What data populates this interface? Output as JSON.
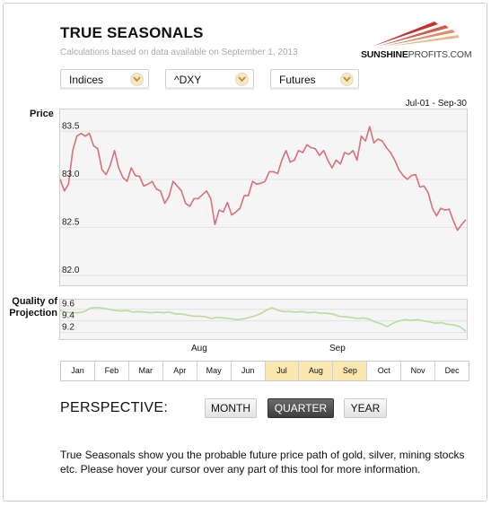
{
  "header": {
    "title": "TRUE SEASONALS",
    "subtitle": "Calculations based on data available on September 1, 2013",
    "logo_bold": "SUNSHINE",
    "logo_light": "PROFITS.COM"
  },
  "selectors": [
    {
      "value": "Indices"
    },
    {
      "value": "^DXY"
    },
    {
      "value": "Futures"
    }
  ],
  "range_label": "Jul-01 - Sep-30",
  "price_label": "Price",
  "quality_label": "Quality of Projection",
  "month_axis": [
    "Aug",
    "Sep"
  ],
  "months": [
    "Jan",
    "Feb",
    "Mar",
    "Apr",
    "May",
    "Jun",
    "Jul",
    "Aug",
    "Sep",
    "Oct",
    "Nov",
    "Dec"
  ],
  "highlighted_months": [
    "Jul",
    "Aug",
    "Sep"
  ],
  "perspective": {
    "label": "PERSPECTIVE:",
    "buttons": [
      "MONTH",
      "QUARTER",
      "YEAR"
    ],
    "active": "QUARTER"
  },
  "description": "True Seasonals show you the probable future price path of gold, silver, mining stocks etc. Please hover your cursor over any part of this tool for more information.",
  "colors": {
    "price_line": "#d9707b",
    "quality_line": "#b7dc9b",
    "highlight": "#fbe8b0",
    "accent": "#c9302c"
  },
  "chart_data": [
    {
      "type": "line",
      "title": "Price",
      "x_range": [
        "Jul-01",
        "Sep-30"
      ],
      "yticks": [
        82.0,
        82.5,
        83.0,
        83.5
      ],
      "ylim": [
        82.0,
        83.7
      ],
      "grid": true,
      "series": [
        {
          "values": [
            83.0,
            82.88,
            82.95,
            83.3,
            83.45,
            83.48,
            83.45,
            83.48,
            83.35,
            83.32,
            83.1,
            83.05,
            83.15,
            83.3,
            83.12,
            83.02,
            82.98,
            83.12,
            83.04,
            83.03,
            82.93,
            82.95,
            82.98,
            82.9,
            82.88,
            82.75,
            82.82,
            82.98,
            82.93,
            82.88,
            82.75,
            82.72,
            82.8,
            82.8,
            82.84,
            82.88,
            82.8,
            82.53,
            82.68,
            82.66,
            82.76,
            82.63,
            82.66,
            82.7,
            82.83,
            82.83,
            82.98,
            82.95,
            82.96,
            82.98,
            83.08,
            83.08,
            83.06,
            83.2,
            83.3,
            83.18,
            83.2,
            83.3,
            83.28,
            83.36,
            83.33,
            83.32,
            83.25,
            83.3,
            83.2,
            83.12,
            83.2,
            83.16,
            83.28,
            83.26,
            83.3,
            83.2,
            83.45,
            83.4,
            83.55,
            83.38,
            83.42,
            83.4,
            83.33,
            83.28,
            83.2,
            83.1,
            83.04,
            83.0,
            83.04,
            83.05,
            82.92,
            82.93,
            82.86,
            82.7,
            82.62,
            82.7,
            82.68,
            82.69,
            82.57,
            82.47,
            82.53,
            82.58
          ]
        }
      ]
    },
    {
      "type": "line",
      "title": "Quality of Projection",
      "yticks": [
        9.2,
        9.4,
        9.6
      ],
      "ylim": [
        9.1,
        9.75
      ],
      "grid": true,
      "series": [
        {
          "values": [
            9.58,
            9.55,
            9.54,
            9.54,
            9.56,
            9.62,
            9.63,
            9.62,
            9.6,
            9.58,
            9.57,
            9.58,
            9.55,
            9.56,
            9.55,
            9.54,
            9.55,
            9.54,
            9.55,
            9.52,
            9.52,
            9.5,
            9.48,
            9.48,
            9.47,
            9.44,
            9.46,
            9.45,
            9.44,
            9.42,
            9.43,
            9.45,
            9.48,
            9.52,
            9.58,
            9.63,
            9.58,
            9.56,
            9.56,
            9.55,
            9.56,
            9.54,
            9.55,
            9.53,
            9.53,
            9.52,
            9.48,
            9.47,
            9.46,
            9.44,
            9.45,
            9.43,
            9.38,
            9.35,
            9.3,
            9.36,
            9.4,
            9.42,
            9.41,
            9.42,
            9.4,
            9.38,
            9.36,
            9.37,
            9.34,
            9.33,
            9.3,
            9.22
          ]
        }
      ]
    }
  ]
}
